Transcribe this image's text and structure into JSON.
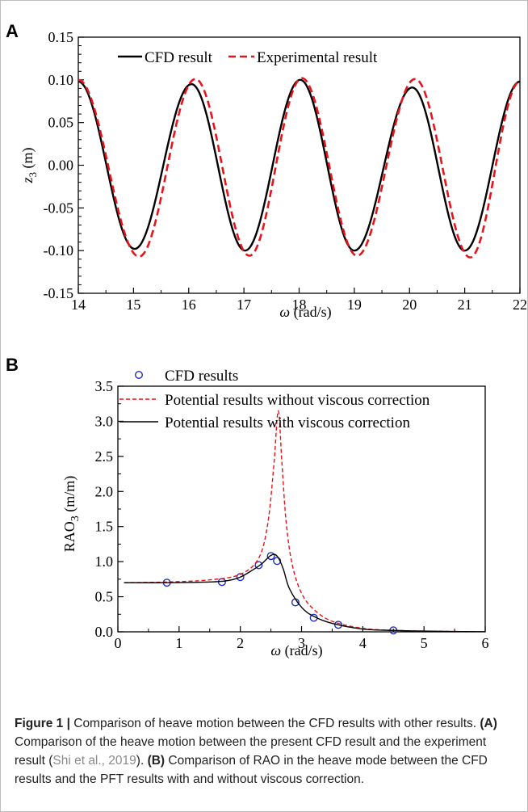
{
  "panels": {
    "a": "A",
    "b": "B"
  },
  "caption": {
    "label": "Figure 1 |",
    "text1": " Comparison of heave motion between the CFD results with other results. ",
    "a_label": "(A)",
    "text2": " Comparison of the heave motion between the present CFD result and the experiment result (",
    "citation": "Shi et al., 2019",
    "text3": "). ",
    "b_label": "(B)",
    "text4": " Comparison of RAO in the heave mode between the CFD results and the PFT results with and without viscous correction."
  },
  "chart_data": [
    {
      "type": "line",
      "panel": "A",
      "xlabel": "ω (rad/s)",
      "ylabel": "z3 (m)",
      "xlim": [
        14,
        22
      ],
      "ylim": [
        -0.15,
        0.15
      ],
      "xticks": [
        "14",
        "15",
        "16",
        "17",
        "18",
        "19",
        "20",
        "21",
        "22"
      ],
      "yticks": [
        "-0.15",
        "-0.10",
        "-0.05",
        "0.00",
        "0.05",
        "0.10",
        "0.15"
      ],
      "legend": "top-left",
      "grid": false,
      "series": [
        {
          "name": "CFD result",
          "style": "solid",
          "color": "#000000",
          "x": [
            14.0,
            15.02,
            16.05,
            17.02,
            18.02,
            19.0,
            20.05,
            21.0,
            22.0
          ],
          "y": [
            0.098,
            -0.098,
            0.095,
            -0.1,
            0.1,
            -0.1,
            0.091,
            -0.1,
            0.098
          ]
        },
        {
          "name": "Experimental result",
          "style": "dashed",
          "color": "#e8141c",
          "x": [
            14.0,
            15.1,
            16.12,
            17.1,
            18.05,
            19.05,
            20.1,
            21.1,
            22.0
          ],
          "y": [
            0.1,
            -0.107,
            0.101,
            -0.106,
            0.102,
            -0.106,
            0.101,
            -0.108,
            0.098
          ]
        }
      ]
    },
    {
      "type": "line",
      "panel": "B",
      "xlabel": "ω (rad/s)",
      "ylabel": "RAO3 (m/m)",
      "xlim": [
        0,
        6
      ],
      "ylim": [
        0,
        3.5
      ],
      "xticks": [
        "0",
        "1",
        "2",
        "3",
        "4",
        "5",
        "6"
      ],
      "yticks": [
        "0.0",
        "0.5",
        "1.0",
        "1.5",
        "2.0",
        "2.5",
        "3.0",
        "3.5"
      ],
      "legend": "top",
      "grid": false,
      "series": [
        {
          "name": "CFD results",
          "style": "markers",
          "color": "#1f2fbf",
          "x": [
            0.8,
            1.7,
            2.0,
            2.3,
            2.5,
            2.6,
            2.9,
            3.2,
            3.6,
            4.5
          ],
          "y": [
            0.7,
            0.71,
            0.78,
            0.95,
            1.08,
            1.01,
            0.42,
            0.2,
            0.1,
            0.02
          ]
        },
        {
          "name": "Potential results without viscous correction",
          "style": "dashed",
          "color": "#e8141c",
          "x": [
            0.1,
            0.8,
            1.5,
            2.0,
            2.3,
            2.45,
            2.55,
            2.62,
            2.68,
            2.75,
            2.85,
            3.0,
            3.2,
            3.5,
            4.0,
            4.5,
            5.0,
            6.0
          ],
          "y": [
            0.7,
            0.71,
            0.74,
            0.82,
            1.05,
            1.55,
            2.4,
            3.15,
            2.4,
            1.55,
            0.95,
            0.55,
            0.32,
            0.15,
            0.05,
            0.02,
            0.01,
            0.0
          ]
        },
        {
          "name": "Potential results with viscous correction",
          "style": "solid",
          "color": "#000000",
          "x": [
            0.1,
            0.8,
            1.5,
            1.8,
            2.0,
            2.2,
            2.35,
            2.5,
            2.6,
            2.7,
            2.8,
            3.0,
            3.2,
            3.5,
            4.0,
            4.5,
            5.0,
            6.0
          ],
          "y": [
            0.7,
            0.7,
            0.71,
            0.73,
            0.78,
            0.88,
            0.97,
            1.09,
            1.08,
            0.9,
            0.62,
            0.35,
            0.22,
            0.12,
            0.04,
            0.02,
            0.01,
            0.0
          ]
        }
      ]
    }
  ]
}
